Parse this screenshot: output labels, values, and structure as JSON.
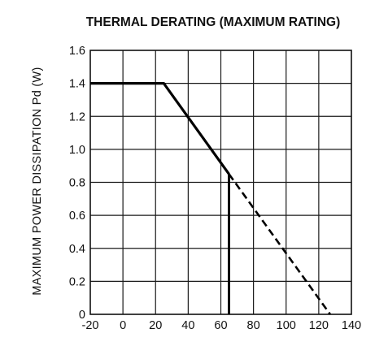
{
  "chart_data": {
    "type": "line",
    "title": "THERMAL DERATING (MAXIMUM RATING)",
    "xlabel": "",
    "ylabel": "MAXIMUM POWER DISSIPATION Pd (W)",
    "xlim": [
      -20,
      140
    ],
    "ylim": [
      0,
      1.6
    ],
    "xticks": [
      "-20",
      "0",
      "20",
      "40",
      "60",
      "80",
      "100",
      "120",
      "140"
    ],
    "yticks": [
      "0",
      "0.2",
      "0.4",
      "0.6",
      "0.8",
      "1.0",
      "1.2",
      "1.4",
      "1.6"
    ],
    "grid": true,
    "series": [
      {
        "style": "solid",
        "x": [
          -20,
          25,
          65
        ],
        "y": [
          1.4,
          1.4,
          0.85
        ]
      },
      {
        "style": "dashed",
        "x": [
          65,
          127
        ],
        "y": [
          0.85,
          0
        ]
      },
      {
        "style": "solid-vertical",
        "x": [
          65,
          65
        ],
        "y": [
          0.85,
          0
        ]
      }
    ]
  }
}
